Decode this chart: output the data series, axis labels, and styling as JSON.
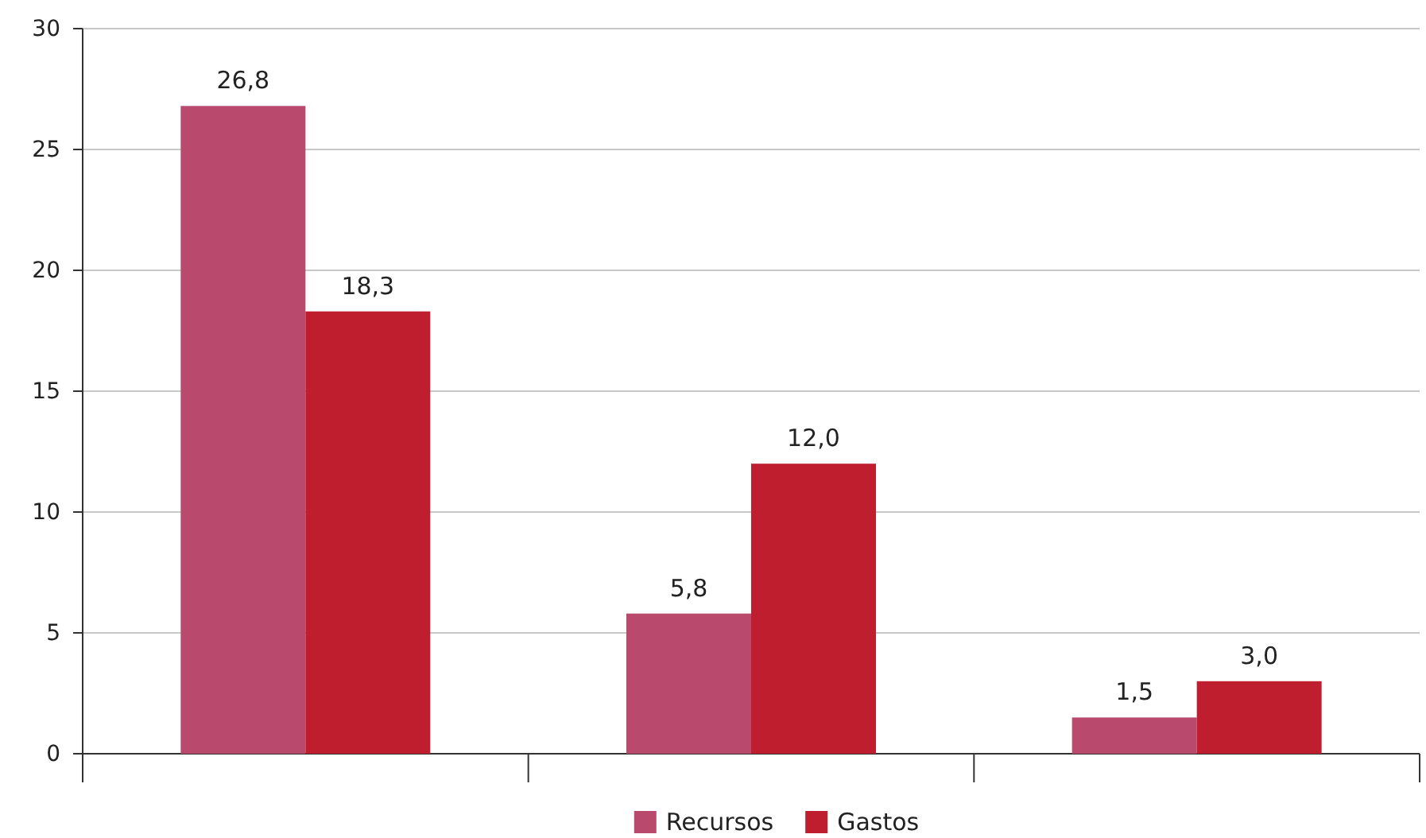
{
  "chart_data": {
    "type": "bar",
    "categories": [
      null,
      null,
      null
    ],
    "series": [
      {
        "name": "Recursos",
        "color": "#b94a6e",
        "values": [
          26.8,
          5.8,
          1.5
        ],
        "value_labels": [
          "26,8",
          "5,8",
          "1,5"
        ]
      },
      {
        "name": "Gastos",
        "color": "#be1e2d",
        "values": [
          18.3,
          12.0,
          3.0
        ],
        "value_labels": [
          "18,3",
          "12,0",
          "3,0"
        ]
      }
    ],
    "ylim": [
      0,
      30
    ],
    "yticks": [
      0,
      5,
      10,
      15,
      20,
      25,
      30
    ],
    "grid": "y",
    "legend": "bottom"
  }
}
